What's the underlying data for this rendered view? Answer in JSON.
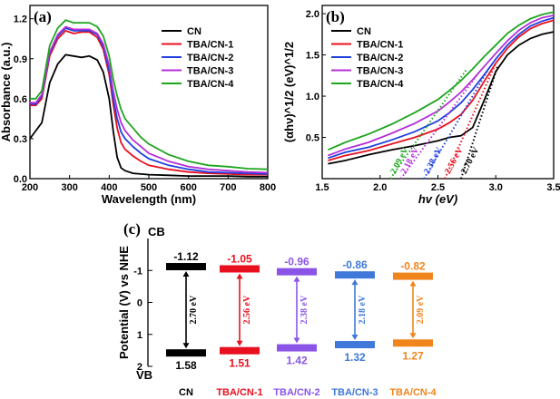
{
  "chart_data": [
    {
      "panel": "(a)",
      "type": "line",
      "xlabel": "Wavelength (nm)",
      "ylabel": "Absorbance (a.u.)",
      "xlim": [
        200,
        800
      ],
      "ylim": [
        0.0,
        1.3
      ],
      "xticks": [
        "200",
        "300",
        "400",
        "500",
        "600",
        "700",
        "800"
      ],
      "yticks": [
        "0.0",
        "0.3",
        "0.6",
        "0.9",
        "1.2"
      ],
      "legend": [
        "CN",
        "TBA/CN-1",
        "TBA/CN-2",
        "TBA/CN-3",
        "TBA/CN-4"
      ],
      "legend_position": "top-right",
      "series": [
        {
          "name": "CN",
          "color": "#000000",
          "x": [
            200,
            215,
            230,
            250,
            270,
            290,
            310,
            330,
            350,
            370,
            385,
            400,
            410,
            420,
            430,
            440,
            460,
            480,
            500,
            550,
            600,
            650,
            700,
            750,
            800
          ],
          "y": [
            0.3,
            0.36,
            0.42,
            0.72,
            0.86,
            0.93,
            0.92,
            0.91,
            0.92,
            0.89,
            0.8,
            0.6,
            0.36,
            0.16,
            0.08,
            0.06,
            0.04,
            0.035,
            0.03,
            0.025,
            0.02,
            0.02,
            0.02,
            0.015,
            0.015
          ]
        },
        {
          "name": "TBA/CN-1",
          "color": "#e8101e",
          "x": [
            200,
            215,
            230,
            250,
            270,
            290,
            310,
            330,
            350,
            370,
            385,
            400,
            410,
            420,
            430,
            440,
            460,
            480,
            500,
            550,
            600,
            650,
            700,
            750,
            800
          ],
          "y": [
            0.55,
            0.55,
            0.6,
            0.92,
            1.05,
            1.11,
            1.09,
            1.1,
            1.1,
            1.06,
            0.97,
            0.78,
            0.56,
            0.38,
            0.27,
            0.22,
            0.17,
            0.13,
            0.1,
            0.07,
            0.05,
            0.04,
            0.035,
            0.03,
            0.03
          ]
        },
        {
          "name": "TBA/CN-2",
          "color": "#1f3fe0",
          "x": [
            200,
            215,
            230,
            250,
            270,
            290,
            310,
            330,
            350,
            370,
            385,
            400,
            410,
            420,
            430,
            440,
            460,
            480,
            500,
            550,
            600,
            650,
            700,
            750,
            800
          ],
          "y": [
            0.56,
            0.56,
            0.62,
            0.94,
            1.07,
            1.13,
            1.11,
            1.11,
            1.11,
            1.08,
            0.99,
            0.81,
            0.6,
            0.45,
            0.35,
            0.3,
            0.24,
            0.19,
            0.15,
            0.1,
            0.07,
            0.05,
            0.045,
            0.04,
            0.035
          ]
        },
        {
          "name": "TBA/CN-3",
          "color": "#b42fd6",
          "x": [
            200,
            215,
            230,
            250,
            270,
            290,
            310,
            330,
            350,
            370,
            385,
            400,
            410,
            420,
            430,
            440,
            460,
            480,
            500,
            550,
            600,
            650,
            700,
            750,
            800
          ],
          "y": [
            0.57,
            0.57,
            0.63,
            0.95,
            1.08,
            1.14,
            1.12,
            1.12,
            1.12,
            1.09,
            1.01,
            0.85,
            0.66,
            0.52,
            0.42,
            0.36,
            0.29,
            0.24,
            0.19,
            0.13,
            0.09,
            0.07,
            0.06,
            0.05,
            0.045
          ]
        },
        {
          "name": "TBA/CN-4",
          "color": "#1ea51e",
          "x": [
            200,
            215,
            230,
            250,
            270,
            290,
            310,
            330,
            350,
            370,
            385,
            400,
            410,
            420,
            430,
            440,
            460,
            480,
            500,
            550,
            600,
            650,
            700,
            750,
            800
          ],
          "y": [
            0.6,
            0.6,
            0.66,
            1.0,
            1.13,
            1.19,
            1.17,
            1.17,
            1.17,
            1.14,
            1.07,
            0.92,
            0.75,
            0.62,
            0.52,
            0.45,
            0.38,
            0.31,
            0.26,
            0.18,
            0.13,
            0.1,
            0.09,
            0.075,
            0.07
          ]
        }
      ]
    },
    {
      "panel": "(b)",
      "type": "line",
      "xlabel": "hv (eV)",
      "ylabel": "(αhν)^1/2 (eV)^1/2",
      "xlim": [
        1.5,
        3.5
      ],
      "ylim": [
        0.0,
        2.1
      ],
      "xticks": [
        "1.5",
        "2.0",
        "2.5",
        "3.0",
        "3.5"
      ],
      "yticks": [
        "0.5",
        "1.0",
        "1.5",
        "2.0"
      ],
      "legend": [
        "CN",
        "TBA/CN-1",
        "TBA/CN-2",
        "TBA/CN-3",
        "TBA/CN-4"
      ],
      "legend_position": "top-left",
      "series": [
        {
          "name": "CN",
          "color": "#000000",
          "x": [
            1.55,
            1.7,
            1.9,
            2.1,
            2.3,
            2.5,
            2.6,
            2.7,
            2.8,
            2.9,
            3.0,
            3.1,
            3.2,
            3.3,
            3.4,
            3.5
          ],
          "y": [
            0.18,
            0.22,
            0.29,
            0.35,
            0.4,
            0.46,
            0.5,
            0.52,
            0.62,
            0.95,
            1.3,
            1.5,
            1.62,
            1.7,
            1.75,
            1.78
          ]
        },
        {
          "name": "TBA/CN-1",
          "color": "#e8101e",
          "x": [
            1.55,
            1.7,
            1.9,
            2.1,
            2.3,
            2.5,
            2.6,
            2.7,
            2.8,
            2.9,
            3.0,
            3.1,
            3.2,
            3.3,
            3.4,
            3.5
          ],
          "y": [
            0.22,
            0.28,
            0.34,
            0.42,
            0.5,
            0.6,
            0.68,
            0.78,
            0.95,
            1.18,
            1.4,
            1.58,
            1.72,
            1.82,
            1.88,
            1.92
          ]
        },
        {
          "name": "TBA/CN-2",
          "color": "#1f3fe0",
          "x": [
            1.55,
            1.7,
            1.9,
            2.1,
            2.3,
            2.5,
            2.6,
            2.7,
            2.8,
            2.9,
            3.0,
            3.1,
            3.2,
            3.3,
            3.4,
            3.5
          ],
          "y": [
            0.25,
            0.32,
            0.38,
            0.47,
            0.57,
            0.7,
            0.8,
            0.92,
            1.08,
            1.26,
            1.45,
            1.62,
            1.75,
            1.85,
            1.91,
            1.95
          ]
        },
        {
          "name": "TBA/CN-3",
          "color": "#b42fd6",
          "x": [
            1.55,
            1.7,
            1.9,
            2.1,
            2.3,
            2.5,
            2.6,
            2.7,
            2.8,
            2.9,
            3.0,
            3.1,
            3.2,
            3.3,
            3.4,
            3.5
          ],
          "y": [
            0.28,
            0.36,
            0.44,
            0.55,
            0.67,
            0.82,
            0.93,
            1.05,
            1.2,
            1.36,
            1.52,
            1.67,
            1.8,
            1.89,
            1.95,
            1.98
          ]
        },
        {
          "name": "TBA/CN-4",
          "color": "#1ea51e",
          "x": [
            1.55,
            1.7,
            1.9,
            2.1,
            2.3,
            2.5,
            2.6,
            2.7,
            2.8,
            2.9,
            3.0,
            3.1,
            3.2,
            3.3,
            3.4,
            3.5
          ],
          "y": [
            0.35,
            0.44,
            0.54,
            0.66,
            0.8,
            0.96,
            1.07,
            1.19,
            1.33,
            1.48,
            1.62,
            1.76,
            1.86,
            1.94,
            1.99,
            2.02
          ]
        }
      ],
      "tangents": [
        {
          "label": "2.09 eV",
          "color": "#1ea51e",
          "x_intercept": 2.09,
          "x_end": 2.75,
          "y_end": 1.33
        },
        {
          "label": "2.18 eV",
          "color": "#b42fd6",
          "x_intercept": 2.18,
          "x_end": 2.85,
          "y_end": 1.28
        },
        {
          "label": "2.38 eV",
          "color": "#1f3fe0",
          "x_intercept": 2.38,
          "x_end": 2.95,
          "y_end": 1.36
        },
        {
          "label": "2.56 eV",
          "color": "#e8101e",
          "x_intercept": 2.56,
          "x_end": 3.0,
          "y_end": 1.4
        },
        {
          "label": "2.70 eV",
          "color": "#000000",
          "x_intercept": 2.7,
          "x_end": 3.02,
          "y_end": 1.38
        }
      ]
    },
    {
      "panel": "(c)",
      "type": "bar",
      "ylabel": "Potential (V) vs NHE",
      "top_label": "CB",
      "bottom_label": "VB",
      "ylim": [
        2.0,
        -2.0
      ],
      "yticks": [
        "-1",
        "0",
        "1",
        "2"
      ],
      "categories": [
        "CN",
        "TBA/CN-1",
        "TBA/CN-2",
        "TBA/CN-3",
        "TBA/CN-4"
      ],
      "series": [
        {
          "name": "CB",
          "values": [
            "-1.12",
            "-1.05",
            "-0.96",
            "-0.86",
            "-0.82"
          ]
        },
        {
          "name": "VB",
          "values": [
            "1.58",
            "1.51",
            "1.42",
            "1.32",
            "1.27"
          ]
        },
        {
          "name": "Band gap",
          "values": [
            "2.70 eV",
            "2.56 eV",
            "2.38 eV",
            "2.18 eV",
            "2.09 eV"
          ]
        }
      ],
      "colors": [
        "#000000",
        "#e8101e",
        "#8a55e6",
        "#3f78d8",
        "#f0851c"
      ]
    }
  ]
}
